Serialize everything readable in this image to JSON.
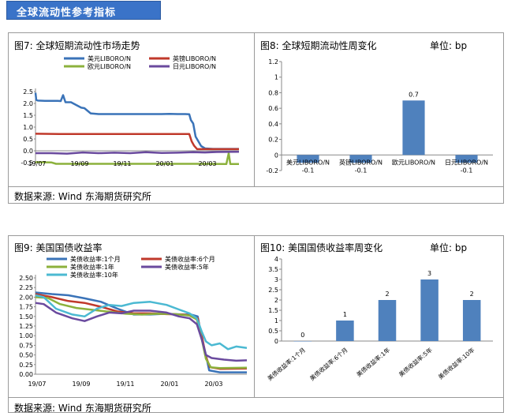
{
  "banner": {
    "title": "全球流动性参考指标"
  },
  "panels": {
    "fig7": {
      "title": "图7: 全球短期流动性市场走势",
      "source": "数据来源: Wind   东海期货研究所"
    },
    "fig8": {
      "title": "图8: 全球短期流动性周变化",
      "unit": "单位: bp"
    },
    "fig9": {
      "title": "图9: 美国国债收益率",
      "source": "数据来源: Wind   东海期货研究所"
    },
    "fig10": {
      "title": "图10: 美国国债收益率周变化",
      "unit": "单位: bp"
    }
  },
  "chart_data": [
    {
      "type": "line",
      "id": "fig7",
      "x_ticks": [
        "19/07",
        "19/09",
        "19/11",
        "20/01",
        "20/03"
      ],
      "y_ticks": [
        "-0.5",
        "0.0",
        "0.5",
        "1.0",
        "1.5",
        "2.0",
        "2.5"
      ],
      "ylim": [
        -0.5,
        2.5
      ],
      "legend_position": "top",
      "series": [
        {
          "name": "美元LIBORO/N",
          "color": "#3a73b8",
          "points": [
            [
              0,
              2.45
            ],
            [
              1,
              2.15
            ],
            [
              3,
              2.12
            ],
            [
              12,
              2.11
            ],
            [
              28,
              2.11
            ],
            [
              32,
              2.1
            ],
            [
              35,
              2.35
            ],
            [
              38,
              2.05
            ],
            [
              45,
              2.05
            ],
            [
              58,
              1.82
            ],
            [
              62,
              1.8
            ],
            [
              70,
              1.58
            ],
            [
              80,
              1.55
            ],
            [
              100,
              1.55
            ],
            [
              120,
              1.55
            ],
            [
              140,
              1.55
            ],
            [
              160,
              1.55
            ],
            [
              170,
              1.56
            ],
            [
              180,
              1.55
            ],
            [
              190,
              1.55
            ],
            [
              195,
              1.54
            ],
            [
              197,
              1.3
            ],
            [
              200,
              1.15
            ],
            [
              203,
              0.6
            ],
            [
              210,
              0.2
            ],
            [
              215,
              0.1
            ],
            [
              225,
              0.08
            ],
            [
              258,
              0.08
            ]
          ]
        },
        {
          "name": "英镑LIBORO/N",
          "color": "#c0392b",
          "points": [
            [
              0,
              0.72
            ],
            [
              30,
              0.71
            ],
            [
              60,
              0.71
            ],
            [
              100,
              0.71
            ],
            [
              140,
              0.71
            ],
            [
              170,
              0.71
            ],
            [
              195,
              0.71
            ],
            [
              198,
              0.4
            ],
            [
              201,
              0.22
            ],
            [
              205,
              0.07
            ],
            [
              258,
              0.07
            ]
          ]
        },
        {
          "name": "欧元LIBORO/N",
          "color": "#8cb13c",
          "points": [
            [
              0,
              -0.48
            ],
            [
              20,
              -0.49
            ],
            [
              26,
              -0.55
            ],
            [
              60,
              -0.55
            ],
            [
              100,
              -0.55
            ],
            [
              140,
              -0.55
            ],
            [
              180,
              -0.55
            ],
            [
              205,
              -0.55
            ],
            [
              242,
              -0.56
            ],
            [
              245,
              -0.1
            ],
            [
              247,
              -0.56
            ],
            [
              258,
              -0.56
            ]
          ]
        },
        {
          "name": "日元LIBORO/N",
          "color": "#6a4a9e",
          "points": [
            [
              0,
              -0.1
            ],
            [
              20,
              -0.1
            ],
            [
              40,
              -0.12
            ],
            [
              60,
              -0.07
            ],
            [
              80,
              -0.1
            ],
            [
              100,
              -0.08
            ],
            [
              120,
              -0.1
            ],
            [
              140,
              -0.06
            ],
            [
              160,
              -0.09
            ],
            [
              180,
              -0.08
            ],
            [
              200,
              -0.06
            ],
            [
              215,
              -0.07
            ],
            [
              230,
              -0.05
            ],
            [
              258,
              -0.04
            ]
          ]
        }
      ]
    },
    {
      "type": "bar",
      "id": "fig8",
      "categories": [
        "美元LIBORO/N",
        "英镑LIBORO/N",
        "欧元LIBORO/N",
        "日元LIBORO/N"
      ],
      "values": [
        -0.1,
        -0.1,
        0.7,
        -0.1
      ],
      "labels": [
        "-0.1",
        "-0.1",
        "0.7",
        "-0.1"
      ],
      "y_ticks": [
        "-0.2",
        "0",
        "0.2",
        "0.4",
        "0.6",
        "0.8",
        "1",
        "1.2"
      ],
      "ylim": [
        -0.2,
        1.2
      ],
      "color": "#4f81bd"
    },
    {
      "type": "line",
      "id": "fig9",
      "x_ticks": [
        "19/07",
        "19/09",
        "19/11",
        "20/01",
        "20/03"
      ],
      "y_ticks": [
        "0.00",
        "0.25",
        "0.50",
        "0.75",
        "1.00",
        "1.25",
        "1.50",
        "1.75",
        "2.00",
        "2.25",
        "2.50"
      ],
      "ylim": [
        0,
        2.5
      ],
      "legend_position": "top",
      "series": [
        {
          "name": "美债收益率:1个月",
          "color": "#3a73b8",
          "points": [
            [
              0,
              2.12
            ],
            [
              20,
              2.08
            ],
            [
              40,
              2.05
            ],
            [
              60,
              1.97
            ],
            [
              80,
              1.88
            ],
            [
              100,
              1.7
            ],
            [
              120,
              1.55
            ],
            [
              140,
              1.55
            ],
            [
              160,
              1.57
            ],
            [
              180,
              1.55
            ],
            [
              190,
              1.55
            ],
            [
              198,
              1.5
            ],
            [
              202,
              1.05
            ],
            [
              208,
              0.5
            ],
            [
              212,
              0.1
            ],
            [
              225,
              0.05
            ],
            [
              258,
              0.05
            ]
          ]
        },
        {
          "name": "美债收益率:6个月",
          "color": "#c0392b",
          "points": [
            [
              0,
              2.08
            ],
            [
              20,
              2.0
            ],
            [
              40,
              1.9
            ],
            [
              60,
              1.85
            ],
            [
              80,
              1.75
            ],
            [
              100,
              1.63
            ],
            [
              120,
              1.58
            ],
            [
              140,
              1.58
            ],
            [
              160,
              1.56
            ],
            [
              180,
              1.55
            ],
            [
              190,
              1.52
            ],
            [
              198,
              1.45
            ],
            [
              203,
              1.0
            ],
            [
              208,
              0.45
            ],
            [
              213,
              0.18
            ],
            [
              225,
              0.14
            ],
            [
              258,
              0.15
            ]
          ]
        },
        {
          "name": "美债收益率:1年",
          "color": "#8cb13c",
          "points": [
            [
              0,
              2.0
            ],
            [
              15,
              1.98
            ],
            [
              30,
              1.82
            ],
            [
              50,
              1.72
            ],
            [
              70,
              1.67
            ],
            [
              90,
              1.62
            ],
            [
              110,
              1.57
            ],
            [
              130,
              1.55
            ],
            [
              150,
              1.57
            ],
            [
              170,
              1.56
            ],
            [
              188,
              1.52
            ],
            [
              197,
              1.42
            ],
            [
              203,
              0.9
            ],
            [
              208,
              0.4
            ],
            [
              214,
              0.18
            ],
            [
              225,
              0.16
            ],
            [
              258,
              0.17
            ]
          ]
        },
        {
          "name": "美债收益率:5年",
          "color": "#6a4a9e",
          "points": [
            [
              0,
              1.85
            ],
            [
              10,
              1.82
            ],
            [
              25,
              1.6
            ],
            [
              45,
              1.45
            ],
            [
              60,
              1.38
            ],
            [
              75,
              1.5
            ],
            [
              90,
              1.6
            ],
            [
              105,
              1.58
            ],
            [
              120,
              1.65
            ],
            [
              140,
              1.65
            ],
            [
              160,
              1.6
            ],
            [
              175,
              1.5
            ],
            [
              188,
              1.45
            ],
            [
              197,
              1.3
            ],
            [
              203,
              0.9
            ],
            [
              208,
              0.5
            ],
            [
              215,
              0.42
            ],
            [
              230,
              0.38
            ],
            [
              245,
              0.35
            ],
            [
              258,
              0.36
            ]
          ]
        },
        {
          "name": "美债收益率:10年",
          "color": "#4bb9d2",
          "points": [
            [
              0,
              2.05
            ],
            [
              10,
              2.0
            ],
            [
              25,
              1.7
            ],
            [
              45,
              1.55
            ],
            [
              60,
              1.5
            ],
            [
              75,
              1.7
            ],
            [
              90,
              1.8
            ],
            [
              105,
              1.77
            ],
            [
              120,
              1.85
            ],
            [
              140,
              1.88
            ],
            [
              160,
              1.8
            ],
            [
              175,
              1.68
            ],
            [
              188,
              1.58
            ],
            [
              197,
              1.45
            ],
            [
              203,
              1.1
            ],
            [
              208,
              0.85
            ],
            [
              215,
              0.75
            ],
            [
              225,
              0.8
            ],
            [
              235,
              0.65
            ],
            [
              245,
              0.72
            ],
            [
              258,
              0.68
            ]
          ]
        }
      ]
    },
    {
      "type": "bar",
      "id": "fig10",
      "categories": [
        "美债收益率:1个月",
        "美债收益率:6个月",
        "美债收益率:1年",
        "美债收益率:5年",
        "美债收益率:10年"
      ],
      "values": [
        0,
        1,
        2,
        3,
        2
      ],
      "labels": [
        "0",
        "1",
        "2",
        "3",
        "2"
      ],
      "y_ticks": [
        "0",
        "0.5",
        "1",
        "1.5",
        "2",
        "2.5",
        "3",
        "3.5",
        "4"
      ],
      "ylim": [
        0,
        4
      ],
      "color": "#4f81bd"
    }
  ]
}
